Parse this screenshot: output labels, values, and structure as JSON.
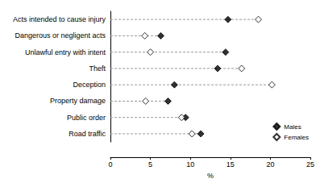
{
  "chart_data": {
    "type": "scatter",
    "orientation": "horizontal",
    "categories": [
      "Acts intended to cause injury",
      "Dangerous or negligent acts",
      "Unlawful entry with intent",
      "Theft",
      "Deception",
      "Property damage",
      "Public order",
      "Road traffic"
    ],
    "series": [
      {
        "name": "Males",
        "color": "#000000",
        "marker": "diamond",
        "values": [
          14.7,
          6.3,
          14.4,
          13.4,
          8.0,
          7.2,
          9.4,
          11.3
        ]
      },
      {
        "name": "Females",
        "color": "#000000",
        "marker": "diamond_open",
        "values": [
          18.5,
          4.3,
          5.0,
          16.4,
          20.2,
          4.4,
          8.9,
          10.2
        ]
      }
    ],
    "xlabel": "%",
    "xlim": [
      0,
      25
    ],
    "xticks": [
      0,
      5,
      10,
      15,
      20,
      25
    ],
    "line_style": "dashed",
    "legend": "lower right"
  }
}
